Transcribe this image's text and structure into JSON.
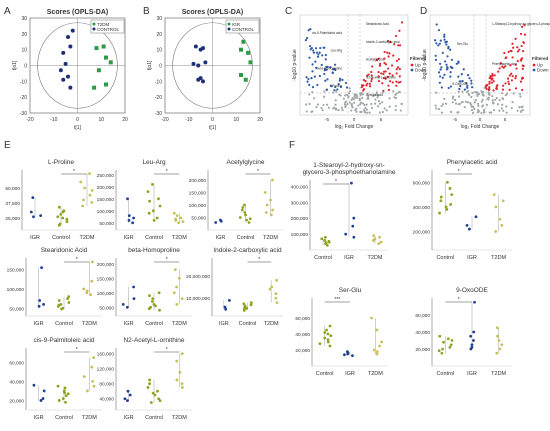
{
  "panel_labels": {
    "A": "A",
    "B": "B",
    "C": "C",
    "D": "D",
    "E": "E",
    "F": "F"
  },
  "colors": {
    "igr": "#1f3f8f",
    "control": "#8fa31f",
    "t2dm": "#c8c05a",
    "score_green": "#2e9a45",
    "score_blue": "#1f2f7a",
    "volcano_up": "#e0242e",
    "volcano_down": "#2d5aa8",
    "volcano_ns": "#a0a8a8"
  },
  "chart_data": [
    {
      "id": "A",
      "type": "scatter",
      "title": "Scores (OPLS-DA)",
      "xlabel": "t[1]",
      "ylabel": "t[o1]",
      "xlim": [
        -20,
        20
      ],
      "ylim": [
        -30,
        30
      ],
      "xticks": [
        "-20",
        "-10",
        "0",
        "10",
        "20"
      ],
      "yticks": [
        "30",
        "20",
        "10",
        "0",
        "-10",
        "-20",
        "-30"
      ],
      "legend": "top-right",
      "series": [
        {
          "name": "T2DM",
          "color": "#2e9a45",
          "x": [
            8,
            11,
            12,
            14,
            9,
            12,
            7
          ],
          "y": [
            11,
            12,
            5,
            2,
            -3,
            -12,
            -14
          ]
        },
        {
          "name": "CONTROL",
          "color": "#1f2f7a",
          "x": [
            -2,
            -4,
            -6,
            -3,
            -5,
            -7,
            -4,
            -6,
            -3
          ],
          "y": [
            22,
            18,
            8,
            12,
            1,
            -3,
            -7,
            -9,
            -14
          ]
        }
      ]
    },
    {
      "id": "B",
      "type": "scatter",
      "title": "Scores (OPLS-DA)",
      "xlabel": "t[1]",
      "ylabel": "t[o1]",
      "xlim": [
        -20,
        20
      ],
      "ylim": [
        -30,
        30
      ],
      "xticks": [
        "-20",
        "-10",
        "0",
        "10",
        "20"
      ],
      "yticks": [
        "30",
        "20",
        "10",
        "0",
        "-10",
        "-20",
        "-30"
      ],
      "legend": "top-right",
      "series": [
        {
          "name": "IGR",
          "color": "#2e9a45",
          "x": [
            13,
            12,
            15,
            16,
            12,
            14
          ],
          "y": [
            15,
            10,
            8,
            2,
            -6,
            -9
          ]
        },
        {
          "name": "CONTROL",
          "color": "#1f2f7a",
          "x": [
            -5,
            -7,
            -4,
            -6,
            -8,
            -3,
            -5,
            -6,
            -4
          ],
          "y": [
            10,
            12,
            11,
            0,
            1,
            2,
            -8,
            -9,
            -10
          ]
        }
      ]
    },
    {
      "id": "C",
      "type": "scatter",
      "title": "",
      "xlabel": "log₂ Fold Change",
      "ylabel": "-log10 p-value",
      "xticks": [
        "-5",
        "0",
        "5"
      ],
      "legend": "right",
      "legend_title": "Filtered",
      "legend_entries": [
        "Up",
        "Down"
      ],
      "annotations": [
        "Stearidonic Acid",
        "cis-9-Palmitoleic acid",
        "Indole-2-carboxylic acid",
        "Leu-Arg",
        "Acetylglycine",
        "beta-Homoproline",
        "N2-Acetyl-L-ornithine",
        "Proline",
        "Azelaic acid"
      ]
    },
    {
      "id": "D",
      "type": "scatter",
      "title": "",
      "xlabel": "log₂ Fold Change",
      "ylabel": "-log10 p-value",
      "xticks": [
        "-5",
        "0",
        "5"
      ],
      "legend": "right",
      "legend_title": "Filtered",
      "legend_entries": [
        "Up",
        "Down"
      ],
      "annotations": [
        "1-Stearoyl-2-hydroxy-sn-glycero-3-phosphoethanolamine",
        "Ser-Glu",
        "Phenylacetic acid",
        "9-OxoODE"
      ]
    },
    {
      "id": "E1",
      "type": "scatter",
      "title": "L-Proline",
      "categories": [
        "IGR",
        "Control",
        "T2DM"
      ],
      "yticks": [
        "25,000",
        "37,500",
        "50,000"
      ],
      "ylim": [
        15000,
        65000
      ],
      "sig": [
        1,
        2
      ],
      "groups": [
        [
          42000,
          30000,
          27000,
          26000
        ],
        [
          30000,
          26000,
          22000,
          20000,
          34000,
          28000,
          24000,
          31000,
          19000,
          25000
        ],
        [
          62000,
          55000,
          48000,
          44000,
          38000,
          35000,
          40000,
          50000
        ]
      ]
    },
    {
      "id": "E2",
      "type": "scatter",
      "title": "Leu-Arg",
      "categories": [
        "IGR",
        "Control",
        "T2DM"
      ],
      "yticks": [
        "50,000",
        "100,000",
        "150,000",
        "200,000",
        "250,000"
      ],
      "ylim": [
        20000,
        270000
      ],
      "sig": [
        1,
        2
      ],
      "groups": [
        [
          150000,
          70000,
          60000,
          50000,
          80000
        ],
        [
          210000,
          180000,
          140000,
          120000,
          100000,
          90000,
          70000,
          60000,
          150000
        ],
        [
          90000,
          70000,
          55000,
          50000,
          60000,
          80000,
          65000
        ]
      ]
    },
    {
      "id": "E3",
      "type": "scatter",
      "title": "Acetylglycine",
      "categories": [
        "IGR",
        "Control",
        "T2DM"
      ],
      "yticks": [
        "50,000",
        "100,000",
        "150,000",
        "200,000"
      ],
      "ylim": [
        0,
        240000
      ],
      "sig": [
        1,
        2
      ],
      "groups": [
        [
          40000,
          35000,
          30000
        ],
        [
          80000,
          70000,
          60000,
          50000,
          45000,
          40000,
          100000,
          90000,
          30000
        ],
        [
          200000,
          150000,
          120000,
          100000,
          80000,
          70000,
          60000
        ]
      ]
    },
    {
      "id": "E4",
      "type": "scatter",
      "title": "Stearidonic Acid",
      "categories": [
        "IGR",
        "Control",
        "T2DM"
      ],
      "yticks": [
        "50,000",
        "100,000",
        "150,000"
      ],
      "ylim": [
        30000,
        180000
      ],
      "sig": [
        1,
        2
      ],
      "groups": [
        [
          155000,
          70000,
          60000,
          55000
        ],
        [
          70000,
          65000,
          60000,
          55000,
          50000,
          48000,
          75000,
          80000,
          58000
        ],
        [
          170000,
          120000,
          100000,
          95000,
          90000,
          85000
        ]
      ]
    },
    {
      "id": "E5",
      "type": "scatter",
      "title": "beta-Homoproline",
      "categories": [
        "IGR",
        "Control",
        "T2DM"
      ],
      "yticks": [
        "50,000",
        "100,000",
        "150,000",
        "200,000"
      ],
      "ylim": [
        20000,
        220000
      ],
      "sig": [
        1,
        2
      ],
      "groups": [
        [
          120000,
          80000,
          60000,
          50000
        ],
        [
          100000,
          90000,
          70000,
          60000,
          55000,
          50000,
          45000,
          40000,
          80000
        ],
        [
          180000,
          150000,
          120000,
          100000,
          80000,
          60000
        ]
      ]
    },
    {
      "id": "E6",
      "type": "scatter",
      "title": "Indole-2-carboxylic acid",
      "categories": [
        "IGR",
        "Control",
        "T2DM"
      ],
      "yticks": [
        "10,000,000",
        "20,000,000"
      ],
      "ylim": [
        2000000,
        28000000
      ],
      "sig": [
        1,
        2
      ],
      "groups": [
        [
          9000000,
          6000000,
          5000000
        ],
        [
          8000000,
          7000000,
          6000000,
          5500000,
          5000000,
          4500000,
          7500000,
          6500000
        ],
        [
          18000000,
          15000000,
          14000000,
          12000000,
          10000000,
          8000000
        ]
      ]
    },
    {
      "id": "E7",
      "type": "scatter",
      "title": "cis-9-Palmitoleic acid",
      "categories": [
        "IGR",
        "Control",
        "T2DM"
      ],
      "yticks": [
        "20,000",
        "40,000",
        "60,000"
      ],
      "ylim": [
        10000,
        75000
      ],
      "sig": [
        1,
        2
      ],
      "groups": [
        [
          36000,
          30000,
          22000,
          20000
        ],
        [
          33000,
          30000,
          28000,
          25000,
          22000,
          20000,
          18000,
          35000,
          27000
        ],
        [
          65000,
          55000,
          45000,
          40000,
          35000,
          30000
        ]
      ]
    },
    {
      "id": "E8",
      "type": "scatter",
      "title": "N2-Acetyl-L-ornithine",
      "categories": [
        "IGR",
        "Control",
        "T2DM"
      ],
      "yticks": [
        "40,000",
        "80,000",
        "120,000",
        "160,000"
      ],
      "ylim": [
        10000,
        175000
      ],
      "sig": [
        1,
        2
      ],
      "groups": [
        [
          60000,
          50000,
          40000,
          35000
        ],
        [
          90000,
          70000,
          60000,
          50000,
          40000,
          35000,
          30000,
          80000,
          55000
        ],
        [
          160000,
          140000,
          110000,
          90000,
          80000,
          70000
        ]
      ]
    },
    {
      "id": "F1",
      "type": "scatter",
      "title": "1-Stearoyl-2-hydroxy-sn-glycero-3-phosphoethanolamine",
      "categories": [
        "Control",
        "IGR",
        "T2DM"
      ],
      "yticks": [
        "100,000",
        "200,000",
        "300,000",
        "400,000"
      ],
      "ylim": [
        0,
        440000
      ],
      "sig": [
        0,
        1
      ],
      "groups": [
        [
          80000,
          60000,
          50000,
          40000,
          30000,
          70000,
          55000,
          45000
        ],
        [
          420000,
          200000,
          150000,
          100000,
          80000
        ],
        [
          90000,
          70000,
          60000,
          50000,
          80000,
          40000
        ]
      ]
    },
    {
      "id": "F2",
      "type": "scatter",
      "title": "Phenylacetic acid",
      "categories": [
        "Control",
        "IGR",
        "T2DM"
      ],
      "yticks": [
        "200,000",
        "400,000",
        "600,000"
      ],
      "ylim": [
        50000,
        700000
      ],
      "sig": [
        0,
        1
      ],
      "groups": [
        [
          550000,
          500000,
          450000,
          400000,
          380000,
          600000,
          350000,
          480000,
          420000
        ],
        [
          320000,
          250000,
          220000
        ],
        [
          500000,
          450000,
          400000,
          300000,
          250000,
          200000
        ]
      ]
    },
    {
      "id": "F3",
      "type": "scatter",
      "title": "Ser-Glu",
      "categories": [
        "Control",
        "IGR",
        "T2DM"
      ],
      "yticks": [
        "20,000",
        "40,000",
        "60,000"
      ],
      "ylim": [
        0,
        85000
      ],
      "sig": [
        0,
        1
      ],
      "sig_label": "***",
      "groups": [
        [
          50000,
          45000,
          40000,
          38000,
          35000,
          30000,
          28000,
          25000,
          42000,
          33000
        ],
        [
          18000,
          16000,
          15000,
          14000,
          13000
        ],
        [
          60000,
          45000,
          30000,
          25000,
          20000,
          18000,
          15000
        ]
      ]
    },
    {
      "id": "F4",
      "type": "scatter",
      "title": "9-OxoODE",
      "categories": [
        "Control",
        "IGR",
        "T2DM"
      ],
      "yticks": [
        "20,000",
        "40,000",
        "60,000"
      ],
      "ylim": [
        0,
        80000
      ],
      "sig": [
        0,
        1
      ],
      "groups": [
        [
          35000,
          30000,
          25000,
          22000,
          20000,
          18000,
          15000,
          28000,
          32000
        ],
        [
          75000,
          40000,
          35000,
          30000,
          25000,
          22000,
          20000
        ],
        [
          45000,
          35000,
          30000,
          25000,
          20000,
          15000
        ]
      ]
    }
  ]
}
